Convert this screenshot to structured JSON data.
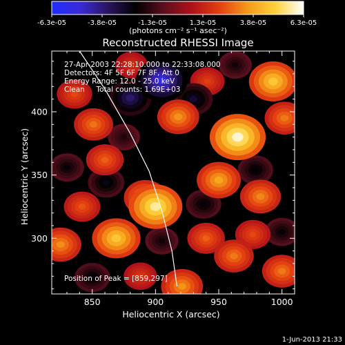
{
  "colorbar": {
    "tick_labels": [
      "-6.3e-05",
      "-3.8e-05",
      "-1.3e-05",
      "1.3e-05",
      "3.8e-05",
      "6.3e-05"
    ],
    "unit_label": "(photons cm⁻² s⁻¹ asec⁻²)",
    "stops": [
      "#1f2cff",
      "#3a2bd8",
      "#2a1560",
      "#000000",
      "#5a0f1e",
      "#b0101a",
      "#e44010",
      "#f59a18",
      "#ffd23a",
      "#ffffff"
    ]
  },
  "chart_data": {
    "type": "heatmap",
    "title": "Reconstructed RHESSI Image",
    "xlabel": "Heliocentric X (arcsec)",
    "ylabel": "Heliocentric Y (arcsec)",
    "xlim": [
      818,
      1010
    ],
    "ylim": [
      256,
      448
    ],
    "x_ticks": [
      850,
      900,
      950,
      1000
    ],
    "y_ticks": [
      300,
      350,
      400
    ],
    "x_tick_labels": [
      "850",
      "900",
      "950",
      "1000"
    ],
    "y_tick_labels": [
      "300",
      "350",
      "400"
    ],
    "value_range": [
      -6.3e-05,
      6.3e-05
    ],
    "info_lines": [
      "27-Apr-2003 22:28:10.000 to 22:33:08.000",
      "Detectors: 4F 5F 6F 7F 8F, Att 0",
      "Energy Range: 12.0 - 25.0 keV",
      "Clean     Total counts: 1.69E+03"
    ],
    "peak_label": "Position of Peak = [859,297]",
    "peak": [
      859,
      297
    ],
    "sources": [
      {
        "x": 965,
        "y": 380,
        "value": 6e-05
      },
      {
        "x": 900,
        "y": 325,
        "value": 5.6e-05
      },
      {
        "x": 869,
        "y": 300,
        "value": 4.6e-05
      },
      {
        "x": 993,
        "y": 424,
        "value": 4.6e-05
      },
      {
        "x": 950,
        "y": 346,
        "value": 3.8e-05
      },
      {
        "x": 892,
        "y": 332,
        "value": 3.6e-05
      },
      {
        "x": 983,
        "y": 333,
        "value": 3.2e-05
      },
      {
        "x": 825,
        "y": 295,
        "value": 3.3e-05
      },
      {
        "x": 918,
        "y": 396,
        "value": 3.4e-05
      },
      {
        "x": 851,
        "y": 390,
        "value": 2.9e-05
      },
      {
        "x": 1002,
        "y": 395,
        "value": 3e-05
      },
      {
        "x": 860,
        "y": 362,
        "value": 2.6e-05
      },
      {
        "x": 940,
        "y": 300,
        "value": 2.6e-05
      },
      {
        "x": 962,
        "y": 286,
        "value": 3e-05
      },
      {
        "x": 921,
        "y": 262,
        "value": 3.4e-05
      },
      {
        "x": 1000,
        "y": 274,
        "value": 3e-05
      },
      {
        "x": 842,
        "y": 325,
        "value": 2.4e-05
      },
      {
        "x": 836,
        "y": 414,
        "value": 2.2e-05
      },
      {
        "x": 941,
        "y": 424,
        "value": 2e-05
      },
      {
        "x": 977,
        "y": 303,
        "value": 2.2e-05
      },
      {
        "x": 888,
        "y": 270,
        "value": 1.8e-05
      },
      {
        "x": 881,
        "y": 437,
        "value": 1.6e-05
      },
      {
        "x": 905,
        "y": 425,
        "value": -5.2e-05
      },
      {
        "x": 880,
        "y": 411,
        "value": -3.6e-05
      },
      {
        "x": 930,
        "y": 410,
        "value": -2.8e-05
      },
      {
        "x": 861,
        "y": 344,
        "value": -2.4e-05
      },
      {
        "x": 938,
        "y": 327,
        "value": -2.2e-05
      },
      {
        "x": 830,
        "y": 356,
        "value": -2e-05
      },
      {
        "x": 979,
        "y": 354,
        "value": -2.2e-05
      },
      {
        "x": 850,
        "y": 269,
        "value": -2.2e-05
      },
      {
        "x": 1000,
        "y": 305,
        "value": -2e-05
      },
      {
        "x": 963,
        "y": 437,
        "value": -1.8e-05
      },
      {
        "x": 905,
        "y": 298,
        "value": -1.8e-05
      },
      {
        "x": 875,
        "y": 380,
        "value": -1.6e-05
      }
    ],
    "limb_curve": [
      [
        840,
        448
      ],
      [
        860,
        418
      ],
      [
        880,
        383
      ],
      [
        895,
        353
      ],
      [
        905,
        322
      ],
      [
        913,
        290
      ],
      [
        917,
        262
      ]
    ]
  },
  "footer": {
    "timestamp": "1-Jun-2013 21:33"
  }
}
